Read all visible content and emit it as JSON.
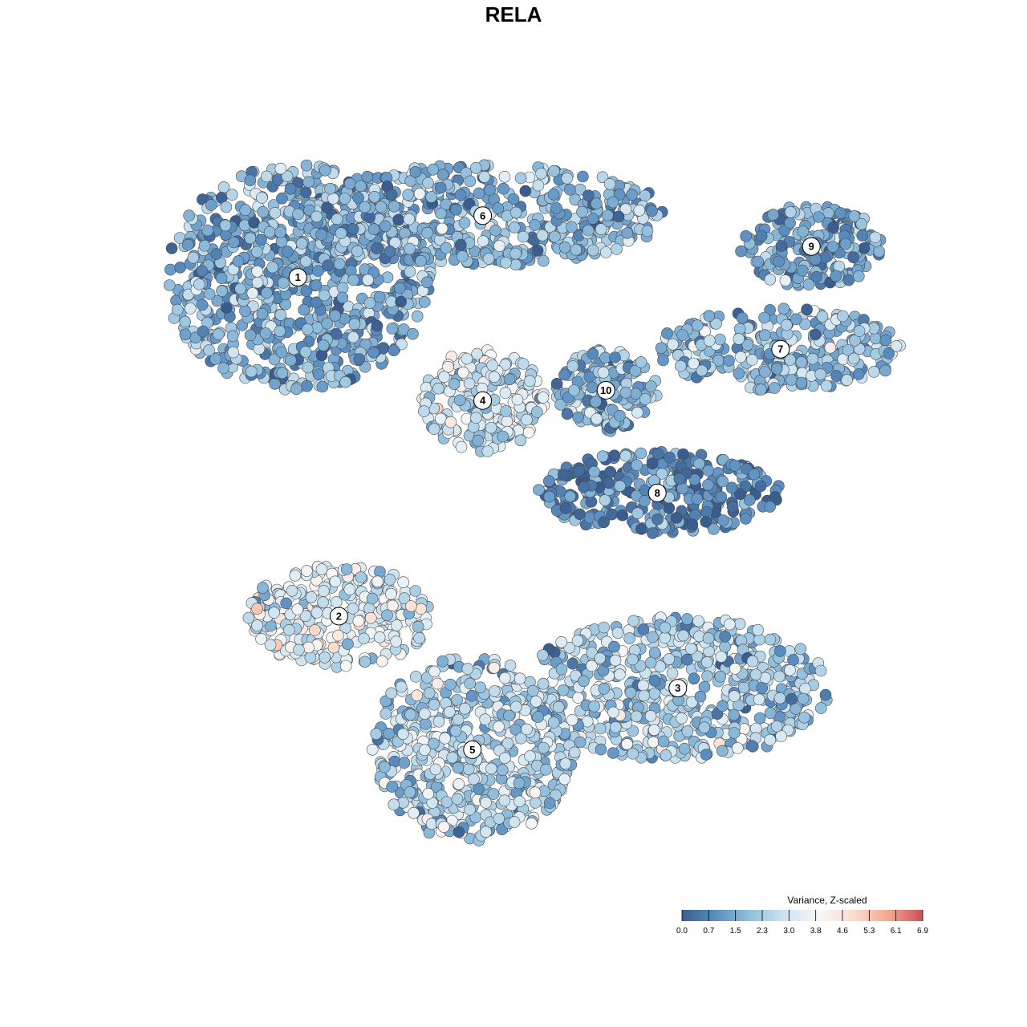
{
  "chart_data": {
    "type": "scatter",
    "title": "RELA",
    "xlabel": "",
    "ylabel": "",
    "grid": false,
    "legend_placement": "bottom-right",
    "legend": {
      "title": "Variance, Z-scaled",
      "ticks": [
        "0.0",
        "0.7",
        "1.5",
        "2.3",
        "3.0",
        "3.8",
        "4.6",
        "5.3",
        "6.1",
        "6.9"
      ],
      "range": [
        0,
        6.9
      ],
      "colors": [
        "#3a5d8f",
        "#5b8fc2",
        "#93c0de",
        "#cfe4f0",
        "#f7f7f7",
        "#fadccf",
        "#f2a98f",
        "#cd4f5a"
      ]
    },
    "clusters": [
      {
        "label": "1",
        "region": {
          "cx": 0.29,
          "cy": 0.27,
          "rx": 0.13,
          "ry": 0.11
        },
        "mean_value": 1.6
      },
      {
        "label": "6",
        "region": {
          "cx": 0.47,
          "cy": 0.21,
          "rx": 0.18,
          "ry": 0.05
        },
        "mean_value": 1.8
      },
      {
        "label": "9",
        "region": {
          "cx": 0.79,
          "cy": 0.24,
          "rx": 0.07,
          "ry": 0.04
        },
        "mean_value": 1.5
      },
      {
        "label": "7",
        "region": {
          "cx": 0.76,
          "cy": 0.34,
          "rx": 0.12,
          "ry": 0.04
        },
        "mean_value": 2.0
      },
      {
        "label": "4",
        "region": {
          "cx": 0.47,
          "cy": 0.39,
          "rx": 0.06,
          "ry": 0.05
        },
        "mean_value": 3.0
      },
      {
        "label": "10",
        "region": {
          "cx": 0.59,
          "cy": 0.38,
          "rx": 0.05,
          "ry": 0.04
        },
        "mean_value": 1.9
      },
      {
        "label": "8",
        "region": {
          "cx": 0.64,
          "cy": 0.48,
          "rx": 0.12,
          "ry": 0.04
        },
        "mean_value": 0.8
      },
      {
        "label": "2",
        "region": {
          "cx": 0.33,
          "cy": 0.6,
          "rx": 0.09,
          "ry": 0.05
        },
        "mean_value": 3.2
      },
      {
        "label": "3",
        "region": {
          "cx": 0.66,
          "cy": 0.67,
          "rx": 0.15,
          "ry": 0.07
        },
        "mean_value": 2.3
      },
      {
        "label": "5",
        "region": {
          "cx": 0.46,
          "cy": 0.73,
          "rx": 0.1,
          "ry": 0.09
        },
        "mean_value": 2.4
      }
    ]
  }
}
